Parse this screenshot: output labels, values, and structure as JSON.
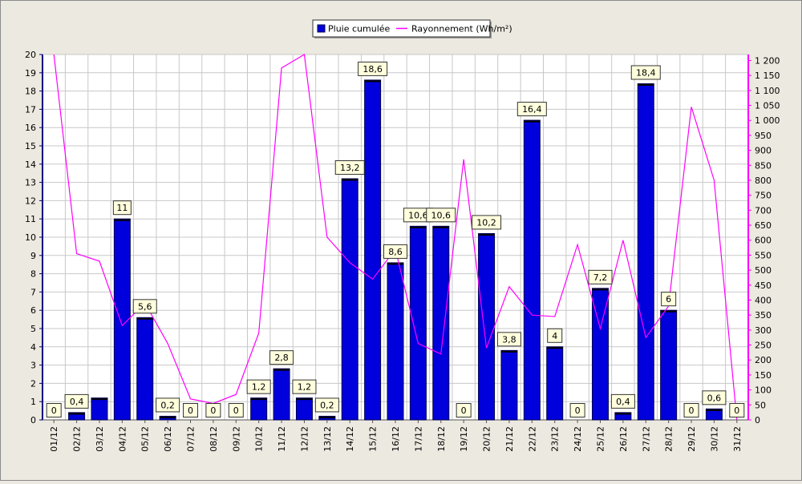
{
  "chart_data": {
    "type": "bar",
    "categories": [
      "01/12",
      "02/12",
      "03/12",
      "04/12",
      "05/12",
      "06/12",
      "07/12",
      "08/12",
      "09/12",
      "10/12",
      "11/12",
      "12/12",
      "13/12",
      "14/12",
      "15/12",
      "16/12",
      "17/12",
      "18/12",
      "19/12",
      "20/12",
      "21/12",
      "22/12",
      "23/12",
      "24/12",
      "25/12",
      "26/12",
      "27/12",
      "28/12",
      "29/12",
      "30/12",
      "31/12"
    ],
    "series": [
      {
        "name": "Pluie cumulée",
        "kind": "bar",
        "axis": "left",
        "color": "#0000dd",
        "values": [
          0,
          0.4,
          1.2,
          11,
          5.6,
          0.2,
          0,
          0,
          0,
          1.2,
          2.8,
          1.2,
          0.2,
          13.2,
          18.6,
          8.6,
          10.6,
          10.6,
          0,
          10.2,
          3.8,
          16.4,
          4,
          0,
          7.2,
          0.4,
          18.4,
          6,
          0,
          0.6,
          0
        ],
        "data_labels": [
          "0",
          "0,4",
          null,
          "11",
          "5,6",
          "0,2",
          "0",
          "0",
          "0",
          "1,2",
          "2,8",
          "1,2",
          "0,2",
          "13,2",
          "18,6",
          "8,6",
          "10,6",
          "10,6",
          "0",
          "10,2",
          "3,8",
          "16,4",
          "4",
          "0",
          "7,2",
          "0,4",
          "18,4",
          "6",
          "0",
          "0,6",
          "0"
        ]
      },
      {
        "name": "Rayonnement (Wh/m²)",
        "kind": "line",
        "axis": "right",
        "color": "#ff00ff",
        "values": [
          1220,
          555,
          530,
          315,
          390,
          255,
          70,
          55,
          85,
          290,
          1175,
          1220,
          610,
          525,
          470,
          570,
          255,
          220,
          870,
          240,
          445,
          350,
          345,
          585,
          305,
          600,
          275,
          380,
          1045,
          800,
          0
        ]
      }
    ],
    "y_left": {
      "min": 0,
      "max": 20,
      "ticks": [
        "0",
        "1",
        "2",
        "3",
        "4",
        "5",
        "6",
        "7",
        "8",
        "9",
        "10",
        "11",
        "12",
        "13",
        "14",
        "15",
        "16",
        "17",
        "18",
        "19",
        "20"
      ]
    },
    "y_right": {
      "min": 0,
      "max": 1220,
      "ticks": [
        "0",
        "50",
        "100",
        "150",
        "200",
        "250",
        "300",
        "350",
        "400",
        "450",
        "500",
        "550",
        "600",
        "650",
        "700",
        "750",
        "800",
        "850",
        "900",
        "950",
        "1 000",
        "1 050",
        "1 100",
        "1 150",
        "1 200"
      ]
    },
    "grid": true,
    "legend_position": "top-center",
    "colors": {
      "background": "#ece9e0",
      "plot": "#ffffff",
      "grid": "#c8c8c8",
      "label_box": "#ffffdd",
      "left_axis": "#000080",
      "right_axis": "#ff00ff"
    }
  }
}
